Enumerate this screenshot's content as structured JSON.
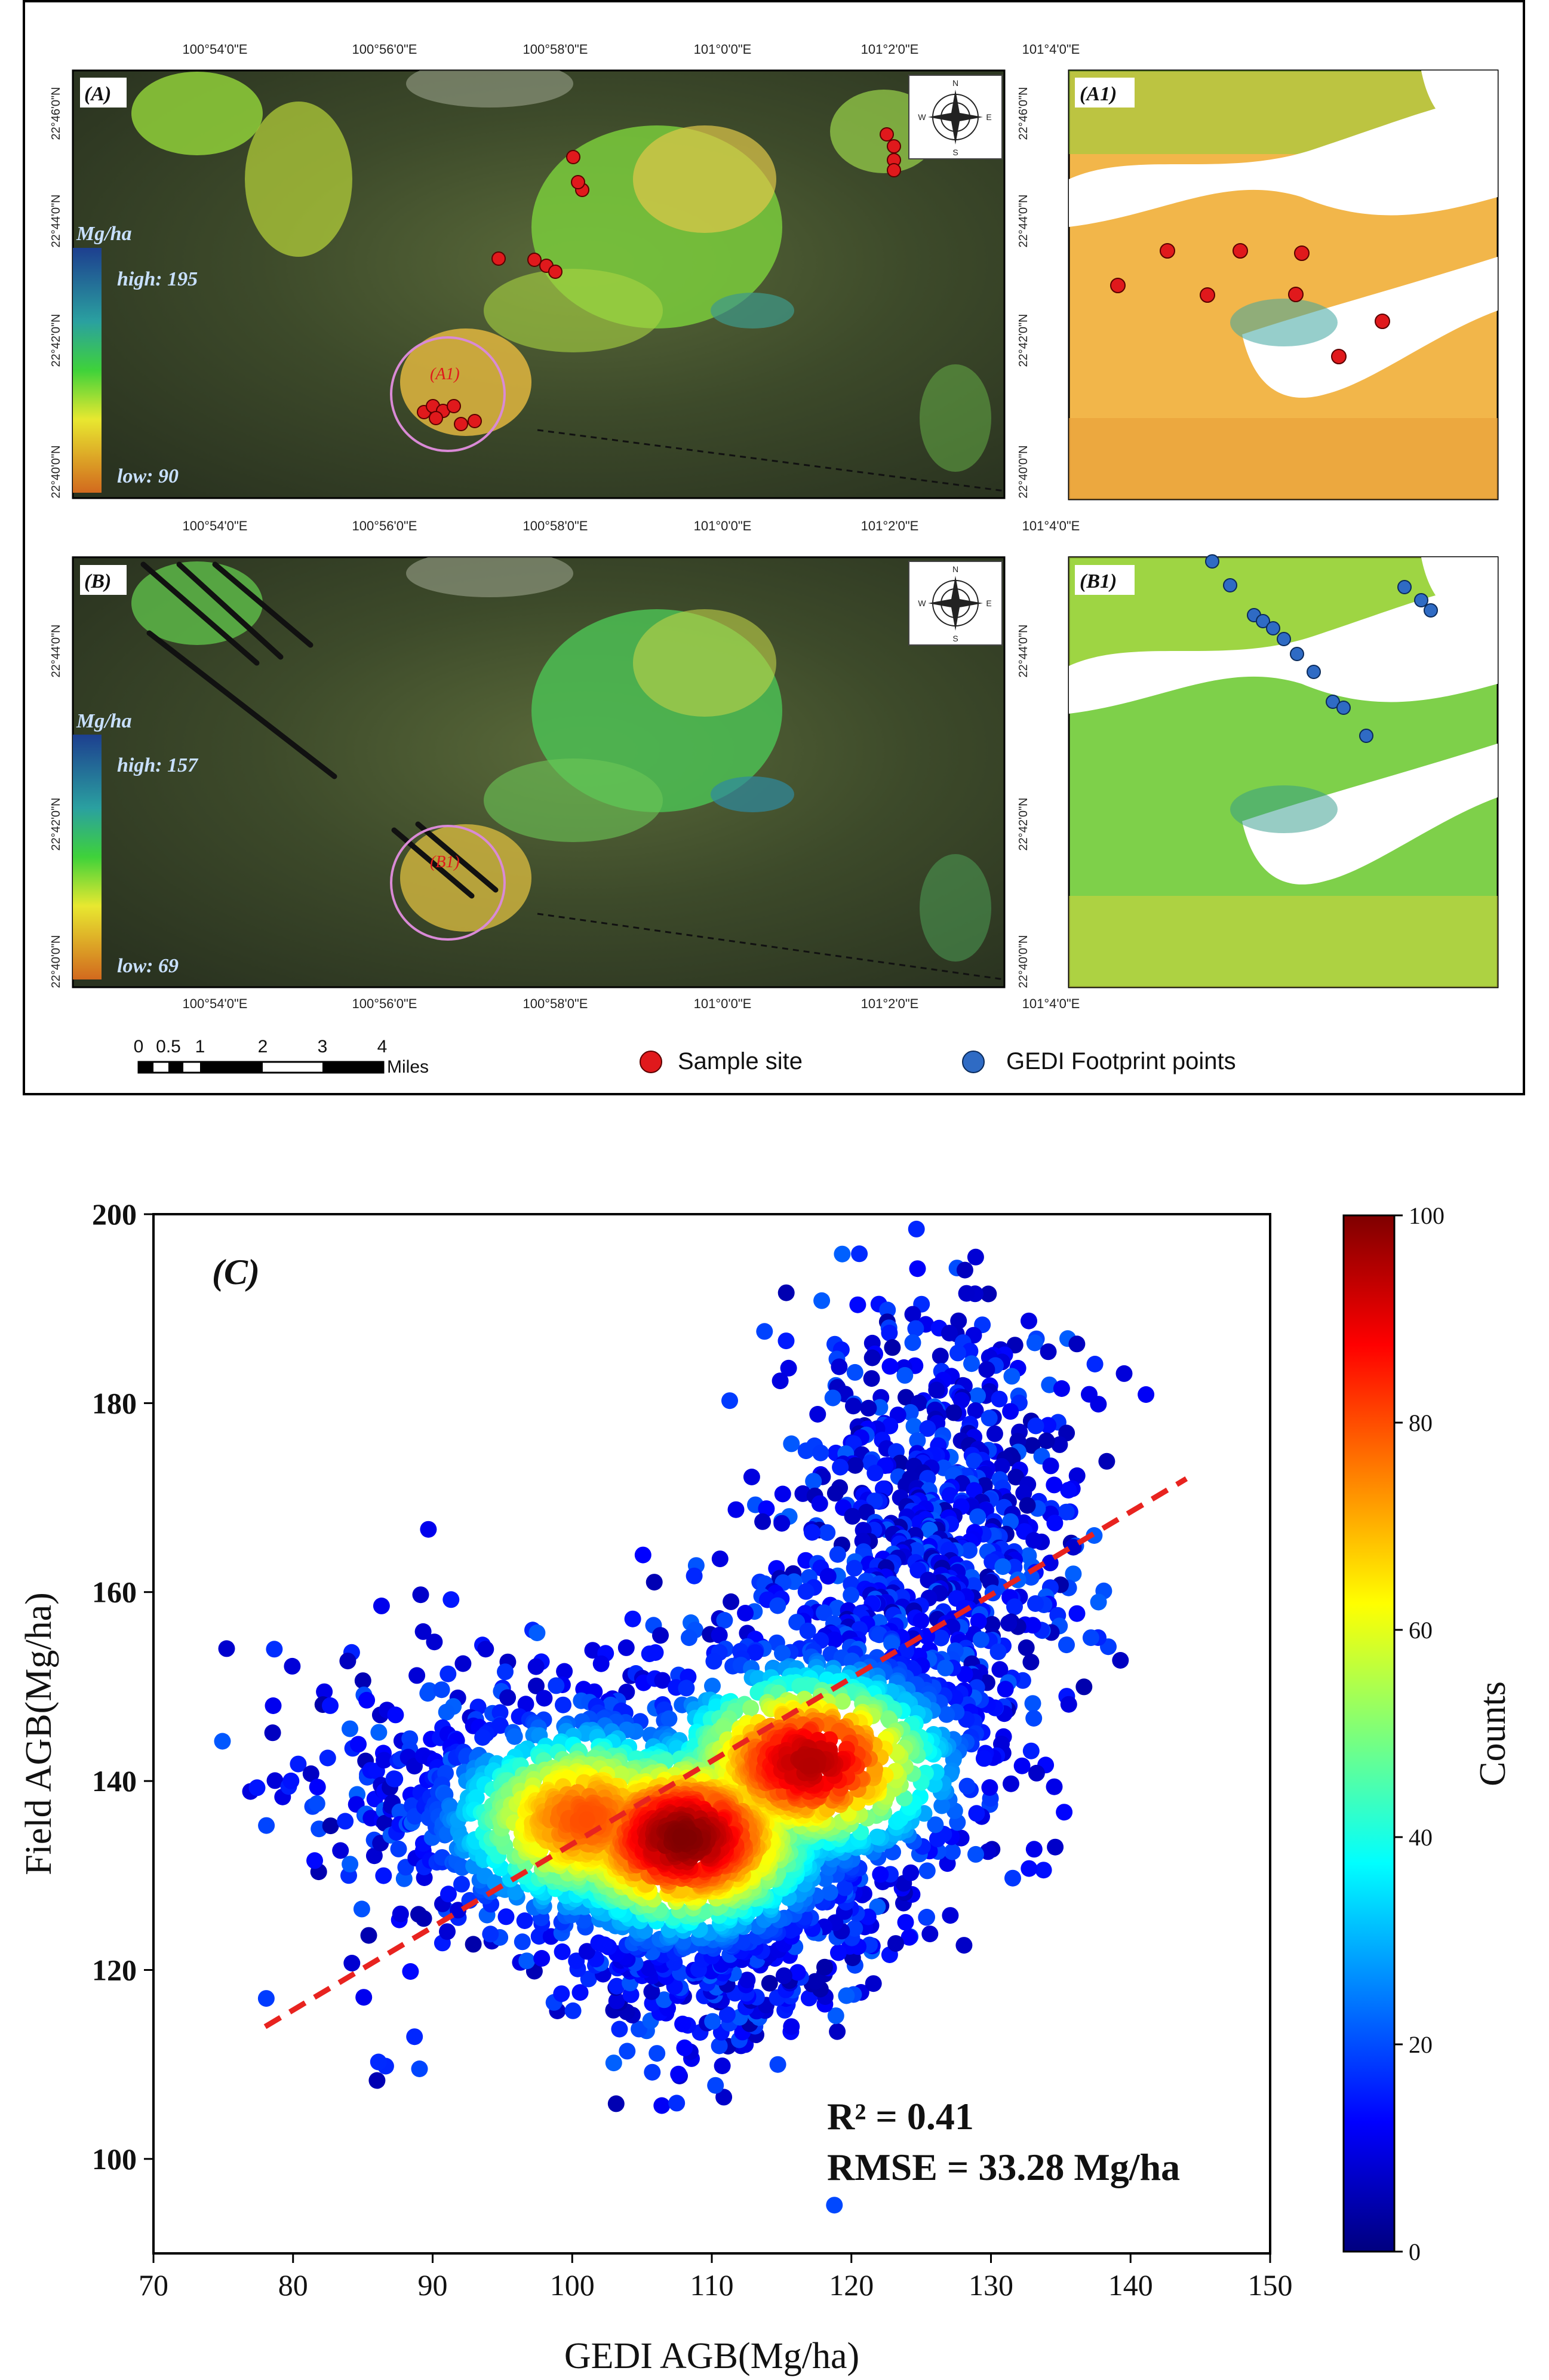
{
  "colors": {
    "map_bg": "#2f3b24",
    "inset_bg": "#ffffff",
    "biomass_high": "#1d4f8f",
    "biomass_low": "#d2691e",
    "sample_site": "#e0191c",
    "gedi_point": "#2f6bc4",
    "fit_line": "#e8231f",
    "circle": "#d98ad6"
  },
  "maps": {
    "top_lon_ticks": [
      "100°54'0\"E",
      "100°56'0\"E",
      "100°58'0\"E",
      "101°0'0\"E",
      "101°2'0\"E",
      "101°4'0\"E"
    ],
    "lat_ticks": [
      "22°46'0\"N",
      "22°44'0\"N",
      "22°42'0\"N",
      "22°40'0\"N"
    ],
    "panel_a": {
      "label": "(A)",
      "inset_label": "(A1)",
      "circle_label": "(A1)",
      "unit": "Mg/ha",
      "high": "high: 195",
      "low": "low: 90"
    },
    "panel_b": {
      "label": "(B)",
      "inset_label": "(B1)",
      "circle_label": "(B1)",
      "unit": "Mg/ha",
      "high": "high: 157",
      "low": "low: 69"
    },
    "compass": {
      "n": "N",
      "s": "S",
      "e": "E",
      "w": "W"
    },
    "scalebar": {
      "ticks": [
        "0",
        "0.5",
        "1",
        "2",
        "3",
        "4"
      ],
      "unit": "Miles"
    },
    "legend": {
      "sample_site": "Sample site",
      "gedi": "GEDI Footprint points"
    }
  },
  "chart_data": {
    "type": "scatter",
    "panel_label": "(C)",
    "xlabel": "GEDI AGB(Mg/ha)",
    "ylabel": "Field AGB(Mg/ha)",
    "xlim": [
      70,
      150
    ],
    "ylim": [
      90,
      200
    ],
    "x_ticks": [
      70,
      80,
      90,
      100,
      110,
      120,
      130,
      140,
      150
    ],
    "y_ticks": [
      100,
      120,
      140,
      160,
      180,
      200
    ],
    "colorbar": {
      "label": "Counts",
      "range": [
        0,
        100
      ],
      "ticks": [
        0,
        20,
        40,
        60,
        80,
        100
      ]
    },
    "fit_line": {
      "x": [
        78,
        144
      ],
      "y": [
        114,
        172
      ]
    },
    "density_peaks": [
      {
        "x": 108,
        "y": 134,
        "count": 100
      },
      {
        "x": 117,
        "y": 142,
        "count": 95
      },
      {
        "x": 101,
        "y": 136,
        "count": 80
      }
    ],
    "annotations": [
      "R² = 0.41",
      "RMSE = 33.28 Mg/ha"
    ]
  }
}
